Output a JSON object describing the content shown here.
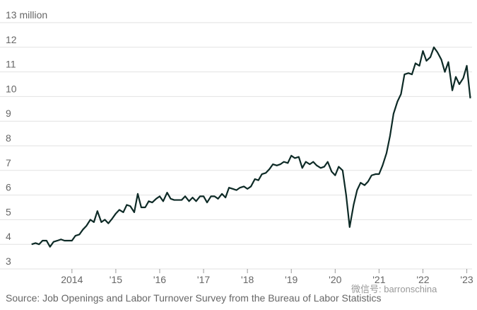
{
  "chart_data": {
    "type": "line",
    "source": "Source: Job Openings and Labor Turnover Survey from the Bureau of Labor Statistics",
    "watermark": "微信号: barronschina",
    "x": [
      2013.08,
      2013.17,
      2013.25,
      2013.33,
      2013.42,
      2013.5,
      2013.58,
      2013.67,
      2013.75,
      2013.83,
      2013.92,
      2014,
      2014.08,
      2014.17,
      2014.25,
      2014.33,
      2014.42,
      2014.5,
      2014.58,
      2014.67,
      2014.75,
      2014.83,
      2014.92,
      2015,
      2015.08,
      2015.17,
      2015.25,
      2015.33,
      2015.42,
      2015.5,
      2015.58,
      2015.67,
      2015.75,
      2015.83,
      2015.92,
      2016,
      2016.08,
      2016.17,
      2016.25,
      2016.33,
      2016.42,
      2016.5,
      2016.58,
      2016.67,
      2016.75,
      2016.83,
      2016.92,
      2017,
      2017.08,
      2017.17,
      2017.25,
      2017.33,
      2017.42,
      2017.5,
      2017.58,
      2017.67,
      2017.75,
      2017.83,
      2017.92,
      2018,
      2018.08,
      2018.17,
      2018.25,
      2018.33,
      2018.42,
      2018.5,
      2018.58,
      2018.67,
      2018.75,
      2018.83,
      2018.92,
      2019,
      2019.08,
      2019.17,
      2019.25,
      2019.33,
      2019.42,
      2019.5,
      2019.58,
      2019.67,
      2019.75,
      2019.83,
      2019.92,
      2020,
      2020.08,
      2020.17,
      2020.25,
      2020.33,
      2020.42,
      2020.5,
      2020.58,
      2020.67,
      2020.75,
      2020.83,
      2020.92,
      2021,
      2021.08,
      2021.17,
      2021.25,
      2021.33,
      2021.42,
      2021.5,
      2021.58,
      2021.67,
      2021.75,
      2021.83,
      2021.92,
      2022,
      2022.08,
      2022.17,
      2022.25,
      2022.33,
      2022.42,
      2022.5,
      2022.58,
      2022.67,
      2022.75,
      2022.83,
      2022.92,
      2023,
      2023.08
    ],
    "series": [
      {
        "color": "#0d2a26",
        "values": [
          4.0,
          4.05,
          4.0,
          4.15,
          4.15,
          3.9,
          4.1,
          4.15,
          4.2,
          4.15,
          4.15,
          4.15,
          4.35,
          4.4,
          4.6,
          4.75,
          5.0,
          4.9,
          5.35,
          4.9,
          5.0,
          4.85,
          5.05,
          5.25,
          5.4,
          5.3,
          5.6,
          5.55,
          5.3,
          6.05,
          5.5,
          5.5,
          5.75,
          5.7,
          5.85,
          5.95,
          5.75,
          6.1,
          5.85,
          5.8,
          5.8,
          5.8,
          5.95,
          5.75,
          5.9,
          5.75,
          5.95,
          5.95,
          5.7,
          5.95,
          5.95,
          5.85,
          6.05,
          5.9,
          6.3,
          6.25,
          6.2,
          6.3,
          6.35,
          6.25,
          6.35,
          6.65,
          6.6,
          6.85,
          6.9,
          7.05,
          7.25,
          7.2,
          7.25,
          7.35,
          7.3,
          7.6,
          7.5,
          7.55,
          7.1,
          7.35,
          7.25,
          7.35,
          7.2,
          7.1,
          7.15,
          7.35,
          6.95,
          6.8,
          7.15,
          7.0,
          6.0,
          4.7,
          5.6,
          6.2,
          6.5,
          6.4,
          6.55,
          6.8,
          6.85,
          6.85,
          7.2,
          7.7,
          8.4,
          9.3,
          9.8,
          10.1,
          10.9,
          10.95,
          10.9,
          11.35,
          11.25,
          11.85,
          11.45,
          11.6,
          12.0,
          11.8,
          11.5,
          11.0,
          11.4,
          10.25,
          10.8,
          10.5,
          10.75,
          11.25,
          9.93
        ]
      }
    ],
    "xlim": [
      2012.36,
      2023.12
    ],
    "xticks": [
      {
        "value": 2014,
        "label": "2014"
      },
      {
        "value": 2015,
        "label": "'15"
      },
      {
        "value": 2016,
        "label": "'16"
      },
      {
        "value": 2017,
        "label": "'17"
      },
      {
        "value": 2018,
        "label": "'18"
      },
      {
        "value": 2019,
        "label": "'19"
      },
      {
        "value": 2020,
        "label": "'20"
      },
      {
        "value": 2021,
        "label": "'21"
      },
      {
        "value": 2022,
        "label": "'22"
      },
      {
        "value": 2023,
        "label": "'23"
      }
    ],
    "ylim": [
      3,
      13
    ],
    "yticks": [
      3,
      4,
      5,
      6,
      7,
      8,
      9,
      10,
      11,
      12,
      {
        "value": 13,
        "label": "13 million"
      }
    ],
    "grid": true
  }
}
